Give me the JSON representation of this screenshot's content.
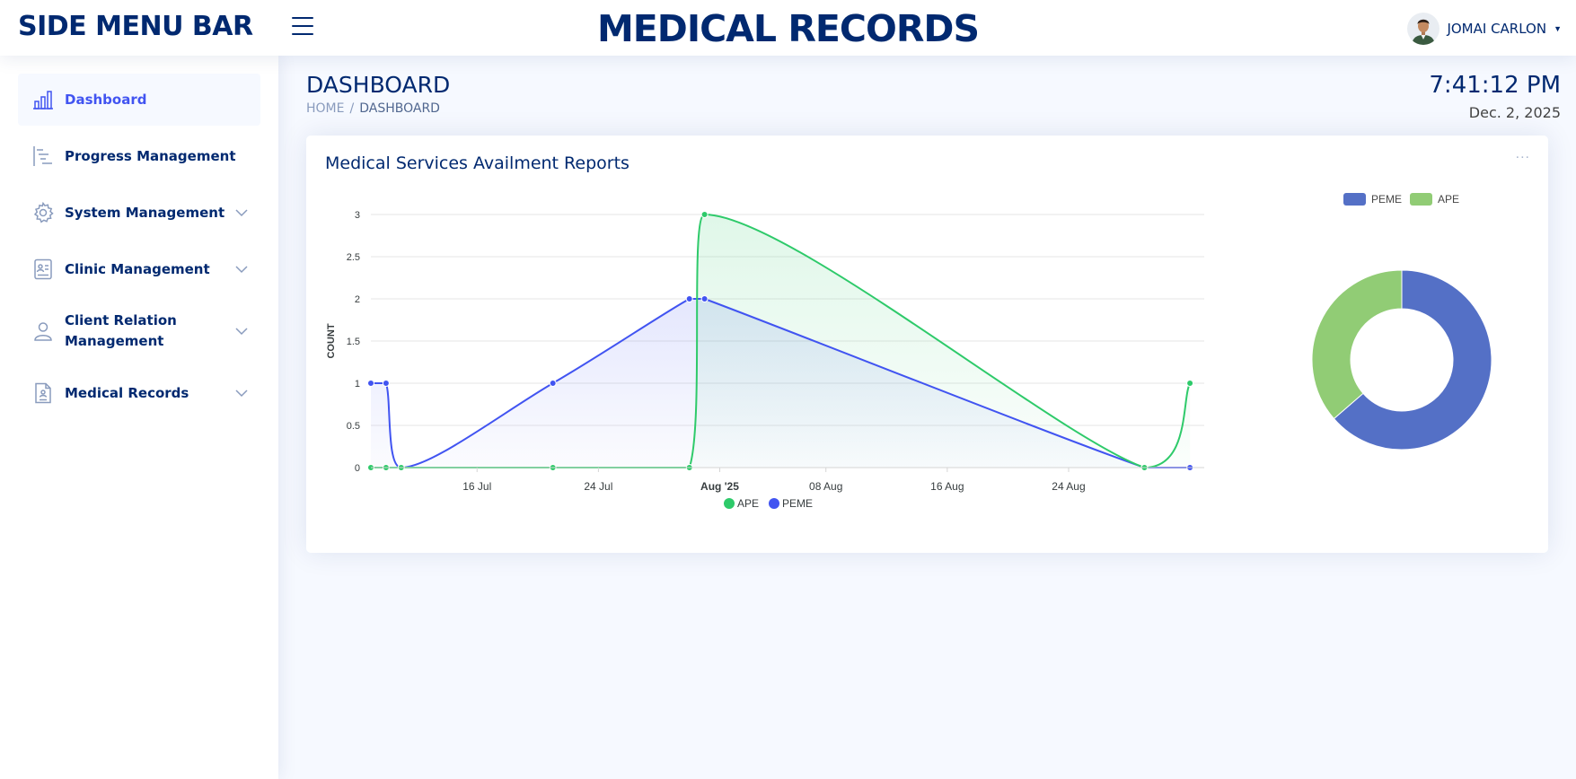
{
  "header": {
    "brand": "SIDE MENU BAR",
    "title": "MEDICAL RECORDS",
    "user_name": "JOMAI CARLON"
  },
  "sidebar": {
    "items": [
      {
        "label": "Dashboard",
        "icon": "bar-chart-icon",
        "active": true,
        "expandable": false
      },
      {
        "label": "Progress Management",
        "icon": "progress-list-icon",
        "active": false,
        "expandable": false
      },
      {
        "label": "System Management",
        "icon": "gear-icon",
        "active": false,
        "expandable": true
      },
      {
        "label": "Clinic Management",
        "icon": "clinic-card-icon",
        "active": false,
        "expandable": true
      },
      {
        "label": "Client Relation Management",
        "icon": "person-icon",
        "active": false,
        "expandable": true
      },
      {
        "label": "Medical Records",
        "icon": "document-icon",
        "active": false,
        "expandable": true
      }
    ]
  },
  "page": {
    "title": "DASHBOARD",
    "breadcrumb": [
      "HOME",
      "DASHBOARD"
    ],
    "separator": "/",
    "time": "7:41:12 PM",
    "date": "Dec. 2, 2025"
  },
  "card": {
    "title": "Medical Services Availment Reports",
    "menu": "..."
  },
  "colors": {
    "ape_line": "#2eca6a",
    "peme_line": "#4154f1",
    "donut_peme": "#5470c6",
    "donut_ape": "#91cc75"
  },
  "chart_data": [
    {
      "type": "area",
      "ylabel": "COUNT",
      "ylim": [
        0,
        3
      ],
      "y_ticks": [
        "0",
        "0.5",
        "1",
        "1.5",
        "2",
        "2.5",
        "3"
      ],
      "x_ticks": [
        "16 Jul",
        "24 Jul",
        "Aug '25",
        "08 Aug",
        "16 Aug",
        "24 Aug"
      ],
      "x_tick_days": [
        16,
        24,
        32,
        39,
        47,
        55
      ],
      "legend": [
        "APE",
        "PEME"
      ],
      "legend_position": "bottom",
      "series": [
        {
          "name": "APE",
          "x": [
            "2025-07-09",
            "2025-07-10",
            "2025-07-11",
            "2025-07-21",
            "2025-07-30",
            "2025-07-31",
            "2025-08-29",
            "2025-09-01"
          ],
          "values": [
            0,
            0,
            0,
            0,
            0,
            3,
            0,
            1
          ]
        },
        {
          "name": "PEME",
          "x": [
            "2025-07-09",
            "2025-07-10",
            "2025-07-11",
            "2025-07-21",
            "2025-07-30",
            "2025-07-31",
            "2025-08-29",
            "2025-09-01"
          ],
          "values": [
            1,
            1,
            0,
            1,
            2,
            2,
            0,
            0
          ]
        }
      ]
    },
    {
      "type": "pie",
      "donut": true,
      "legend": [
        "PEME",
        "APE"
      ],
      "legend_position": "top",
      "series": [
        {
          "name": "PEME",
          "value": 7
        },
        {
          "name": "APE",
          "value": 4
        }
      ]
    }
  ]
}
